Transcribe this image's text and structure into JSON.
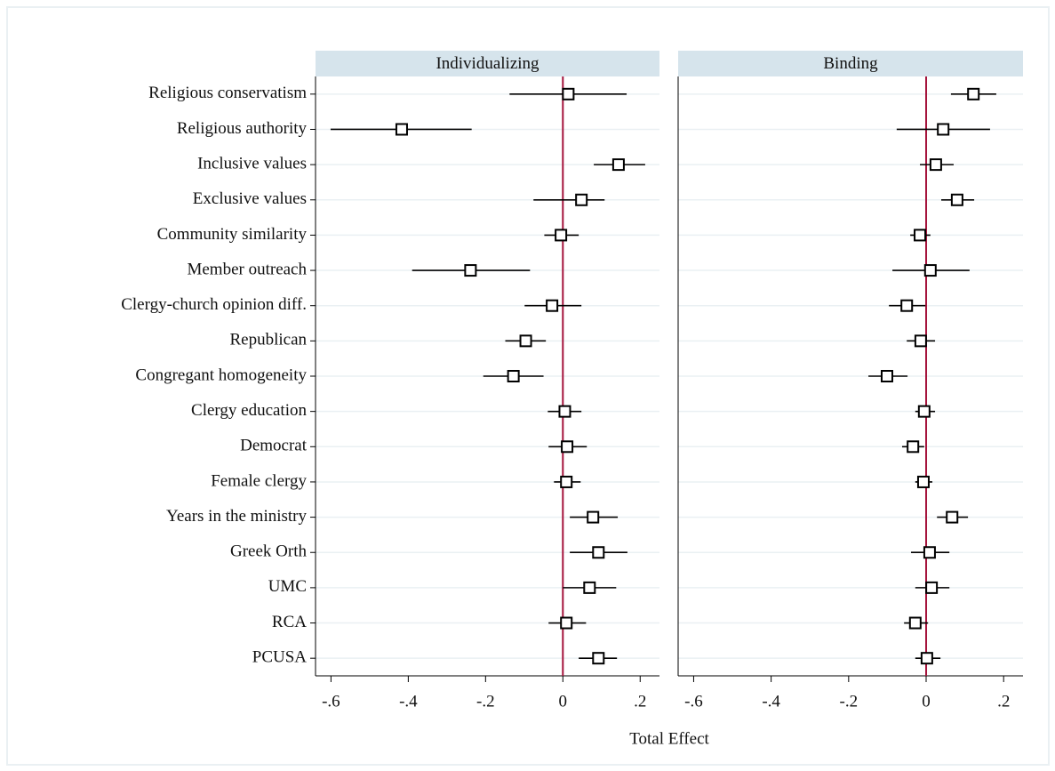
{
  "chart_data": {
    "type": "coefplot",
    "x_label": "Total Effect",
    "categories": [
      "Religious conservatism",
      "Religious authority",
      "Inclusive values",
      "Exclusive values",
      "Community similarity",
      "Member outreach",
      "Clergy-church opinion diff.",
      "Republican",
      "Congregant homogeneity",
      "Clergy education",
      "Democrat",
      "Female clergy",
      "Years in the ministry",
      "Greek Orth",
      "UMC",
      "RCA",
      "PCUSA"
    ],
    "panels": [
      {
        "title": "Individualizing",
        "values": [
          0.014,
          -0.417,
          0.144,
          0.048,
          -0.005,
          -0.239,
          -0.028,
          -0.096,
          -0.128,
          0.005,
          0.011,
          0.009,
          0.078,
          0.092,
          0.069,
          0.009,
          0.092
        ],
        "ci_low": [
          -0.138,
          -0.601,
          0.08,
          -0.076,
          -0.048,
          -0.39,
          -0.099,
          -0.149,
          -0.206,
          -0.039,
          -0.037,
          -0.023,
          0.018,
          0.018,
          0.0,
          -0.037,
          0.041
        ],
        "ci_high": [
          0.165,
          -0.236,
          0.213,
          0.108,
          0.041,
          -0.085,
          0.048,
          -0.044,
          -0.05,
          0.048,
          0.062,
          0.046,
          0.142,
          0.167,
          0.138,
          0.06,
          0.14
        ]
      },
      {
        "title": "Binding",
        "values": [
          0.122,
          0.044,
          0.025,
          0.08,
          -0.016,
          0.011,
          -0.05,
          -0.014,
          -0.101,
          -0.005,
          -0.034,
          -0.007,
          0.067,
          0.009,
          0.014,
          -0.028,
          0.002
        ],
        "ci_low": [
          0.064,
          -0.076,
          -0.016,
          0.039,
          -0.041,
          -0.087,
          -0.096,
          -0.05,
          -0.149,
          -0.028,
          -0.062,
          -0.028,
          0.028,
          -0.039,
          -0.028,
          -0.057,
          -0.028
        ],
        "ci_high": [
          0.181,
          0.165,
          0.071,
          0.124,
          0.011,
          0.112,
          -0.002,
          0.023,
          -0.048,
          0.023,
          -0.005,
          0.016,
          0.108,
          0.06,
          0.06,
          0.005,
          0.037
        ]
      }
    ],
    "xlim": [
      -0.64,
      0.25
    ],
    "xticks": [
      {
        "value": -0.6,
        "label": "-.6"
      },
      {
        "value": -0.4,
        "label": "-.4"
      },
      {
        "value": -0.2,
        "label": "-.2"
      },
      0,
      {
        "value": 0.2,
        "label": ".2"
      }
    ],
    "reference_line": 0,
    "reference_color": "#a5143c",
    "color": "#000000",
    "header_color": "#d6e4ec",
    "grid": true
  }
}
